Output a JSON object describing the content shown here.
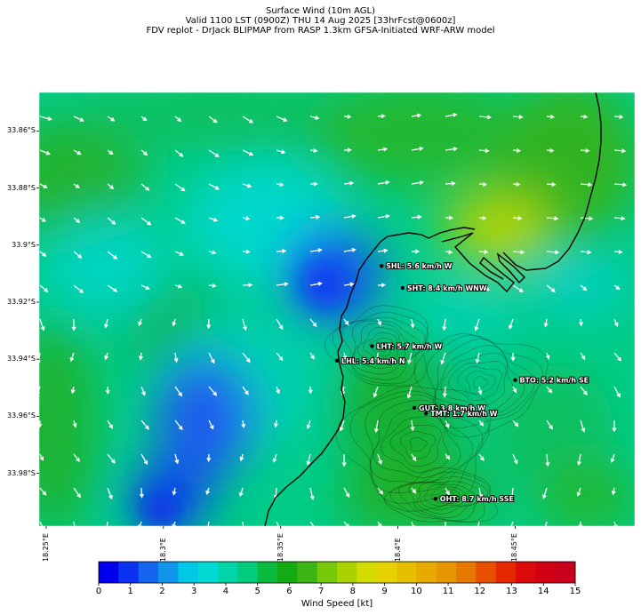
{
  "title": {
    "line1": "Surface Wind (10m AGL)",
    "line2": "Valid 1100 LST (0900Z) THU 14 Aug 2025 [33hrFcst@0600z]",
    "line3": "FDV replot - DrJack BLIPMAP from RASP 1.3km GFSA-Initiated WRF-ARW model"
  },
  "axes": {
    "lat_labels": [
      "33.86°S",
      "33.88°S",
      "33.9°S",
      "33.92°S",
      "33.94°S",
      "33.96°S",
      "33.98°S"
    ],
    "lat_values": [
      -33.86,
      -33.88,
      -33.9,
      -33.92,
      -33.94,
      -33.96,
      -33.98
    ],
    "lon_labels": [
      "18.25°E",
      "18.3°E",
      "18.35°E",
      "18.4°E",
      "18.45°E"
    ],
    "lon_values": [
      18.25,
      18.3,
      18.35,
      18.4,
      18.45
    ],
    "lat_range": [
      -33.9985,
      -33.8465
    ],
    "lon_range": [
      18.247,
      18.501
    ]
  },
  "stations": [
    {
      "label": "SHL: 5.6 km/h W",
      "lon": 18.393,
      "lat": -33.9073
    },
    {
      "label": "SHT: 8.4 km/h WNW",
      "lon": 18.402,
      "lat": -33.915
    },
    {
      "label": "LHT: 5.7 km/h W",
      "lon": 18.389,
      "lat": -33.9354
    },
    {
      "label": "LHL: 5.4 km/h N",
      "lon": 18.374,
      "lat": -33.9405
    },
    {
      "label": "BTO: 5.2 km/h SE",
      "lon": 18.45,
      "lat": -33.9473
    },
    {
      "label": "GUT: 3.8 km/h W",
      "lon": 18.407,
      "lat": -33.957
    },
    {
      "label": "TMT: 1.7 km/h W",
      "lon": 18.412,
      "lat": -33.959
    },
    {
      "label": "OHT: 8.7 km/h SSE",
      "lon": 18.416,
      "lat": -33.9889
    }
  ],
  "colorbar": {
    "label": "Wind Speed [kt]",
    "ticks": [
      "0",
      "1",
      "2",
      "3",
      "4",
      "5",
      "6",
      "7",
      "8",
      "9",
      "10",
      "11",
      "12",
      "13",
      "14",
      "15"
    ],
    "min": 0,
    "max": 15,
    "colors": [
      "#0000ee",
      "#0a32f0",
      "#1464f0",
      "#0f96ec",
      "#00c8e6",
      "#00d8d2",
      "#00d4a8",
      "#00cc7c",
      "#0aba3c",
      "#14aa14",
      "#3cb414",
      "#78c80a",
      "#aad200",
      "#d2dc00",
      "#e6d200",
      "#e6c000",
      "#e6aa00",
      "#e69600",
      "#e67800",
      "#e65000",
      "#e62800",
      "#dc0a0a",
      "#d20014",
      "#c8001e"
    ]
  },
  "colors": {
    "water": "#00d8cc",
    "land_green": "#22bb22",
    "calm": "#1850ee",
    "coast": "#000000",
    "arrow": "#ffffff"
  }
}
